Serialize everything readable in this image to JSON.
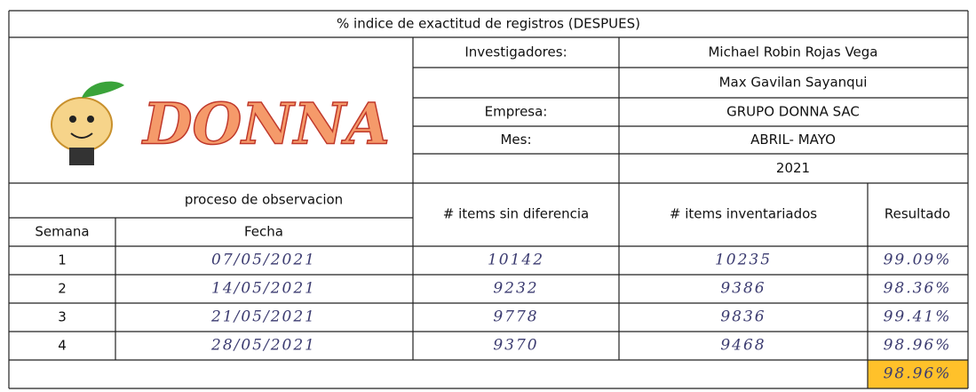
{
  "title": "% indice de exactitud de registros (DESPUES)",
  "logo": "DONNA",
  "info": [
    {
      "label": "Investigadores:",
      "value": "Michael Robin Rojas Vega"
    },
    {
      "label": null,
      "value": "Max Gavilan Sayanqui"
    },
    {
      "label": "Empresa:",
      "value": "GRUPO DONNA SAC"
    },
    {
      "label": "Mes:",
      "value": "ABRIL- MAYO"
    },
    {
      "label": null,
      "value": "2021"
    }
  ],
  "table": {
    "group_header": "proceso de observacion",
    "headers": [
      "Semana",
      "Fecha",
      "# items sin diferencia",
      "# items inventariados",
      "Resultado"
    ],
    "rows": [
      [
        "1",
        "07/05/2021",
        "10142",
        "10235",
        "99.09%"
      ],
      [
        "2",
        "14/05/2021",
        "9232",
        "9386",
        "98.36%"
      ],
      [
        "3",
        "21/05/2021",
        "9778",
        "9836",
        "99.41%"
      ],
      [
        "4",
        "28/05/2021",
        "9370",
        "9468",
        "98.96%"
      ]
    ],
    "total": "98.96%"
  }
}
